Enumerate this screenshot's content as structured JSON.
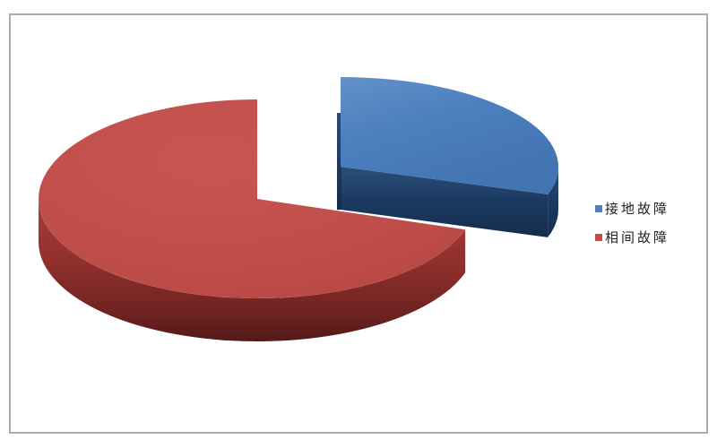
{
  "chart_data": {
    "type": "pie",
    "style": "3d-exploded",
    "title": "",
    "labels": [
      "接地故障",
      "相间故障"
    ],
    "values": [
      30,
      70
    ],
    "colors": [
      "#4F81BD",
      "#C0504D"
    ],
    "side_colors": [
      "#1E3A5F",
      "#8F312F"
    ],
    "start_angle_deg": 90,
    "direction": "clockwise",
    "exploded_slice": "接地故障",
    "legend_position": "right",
    "background": "#FFFFFF",
    "frame_border_color": "#ACACAC"
  },
  "legend": {
    "items": [
      {
        "label": "接地故障",
        "color": "#4F81BD"
      },
      {
        "label": "相间故障",
        "color": "#C0504D"
      }
    ]
  }
}
